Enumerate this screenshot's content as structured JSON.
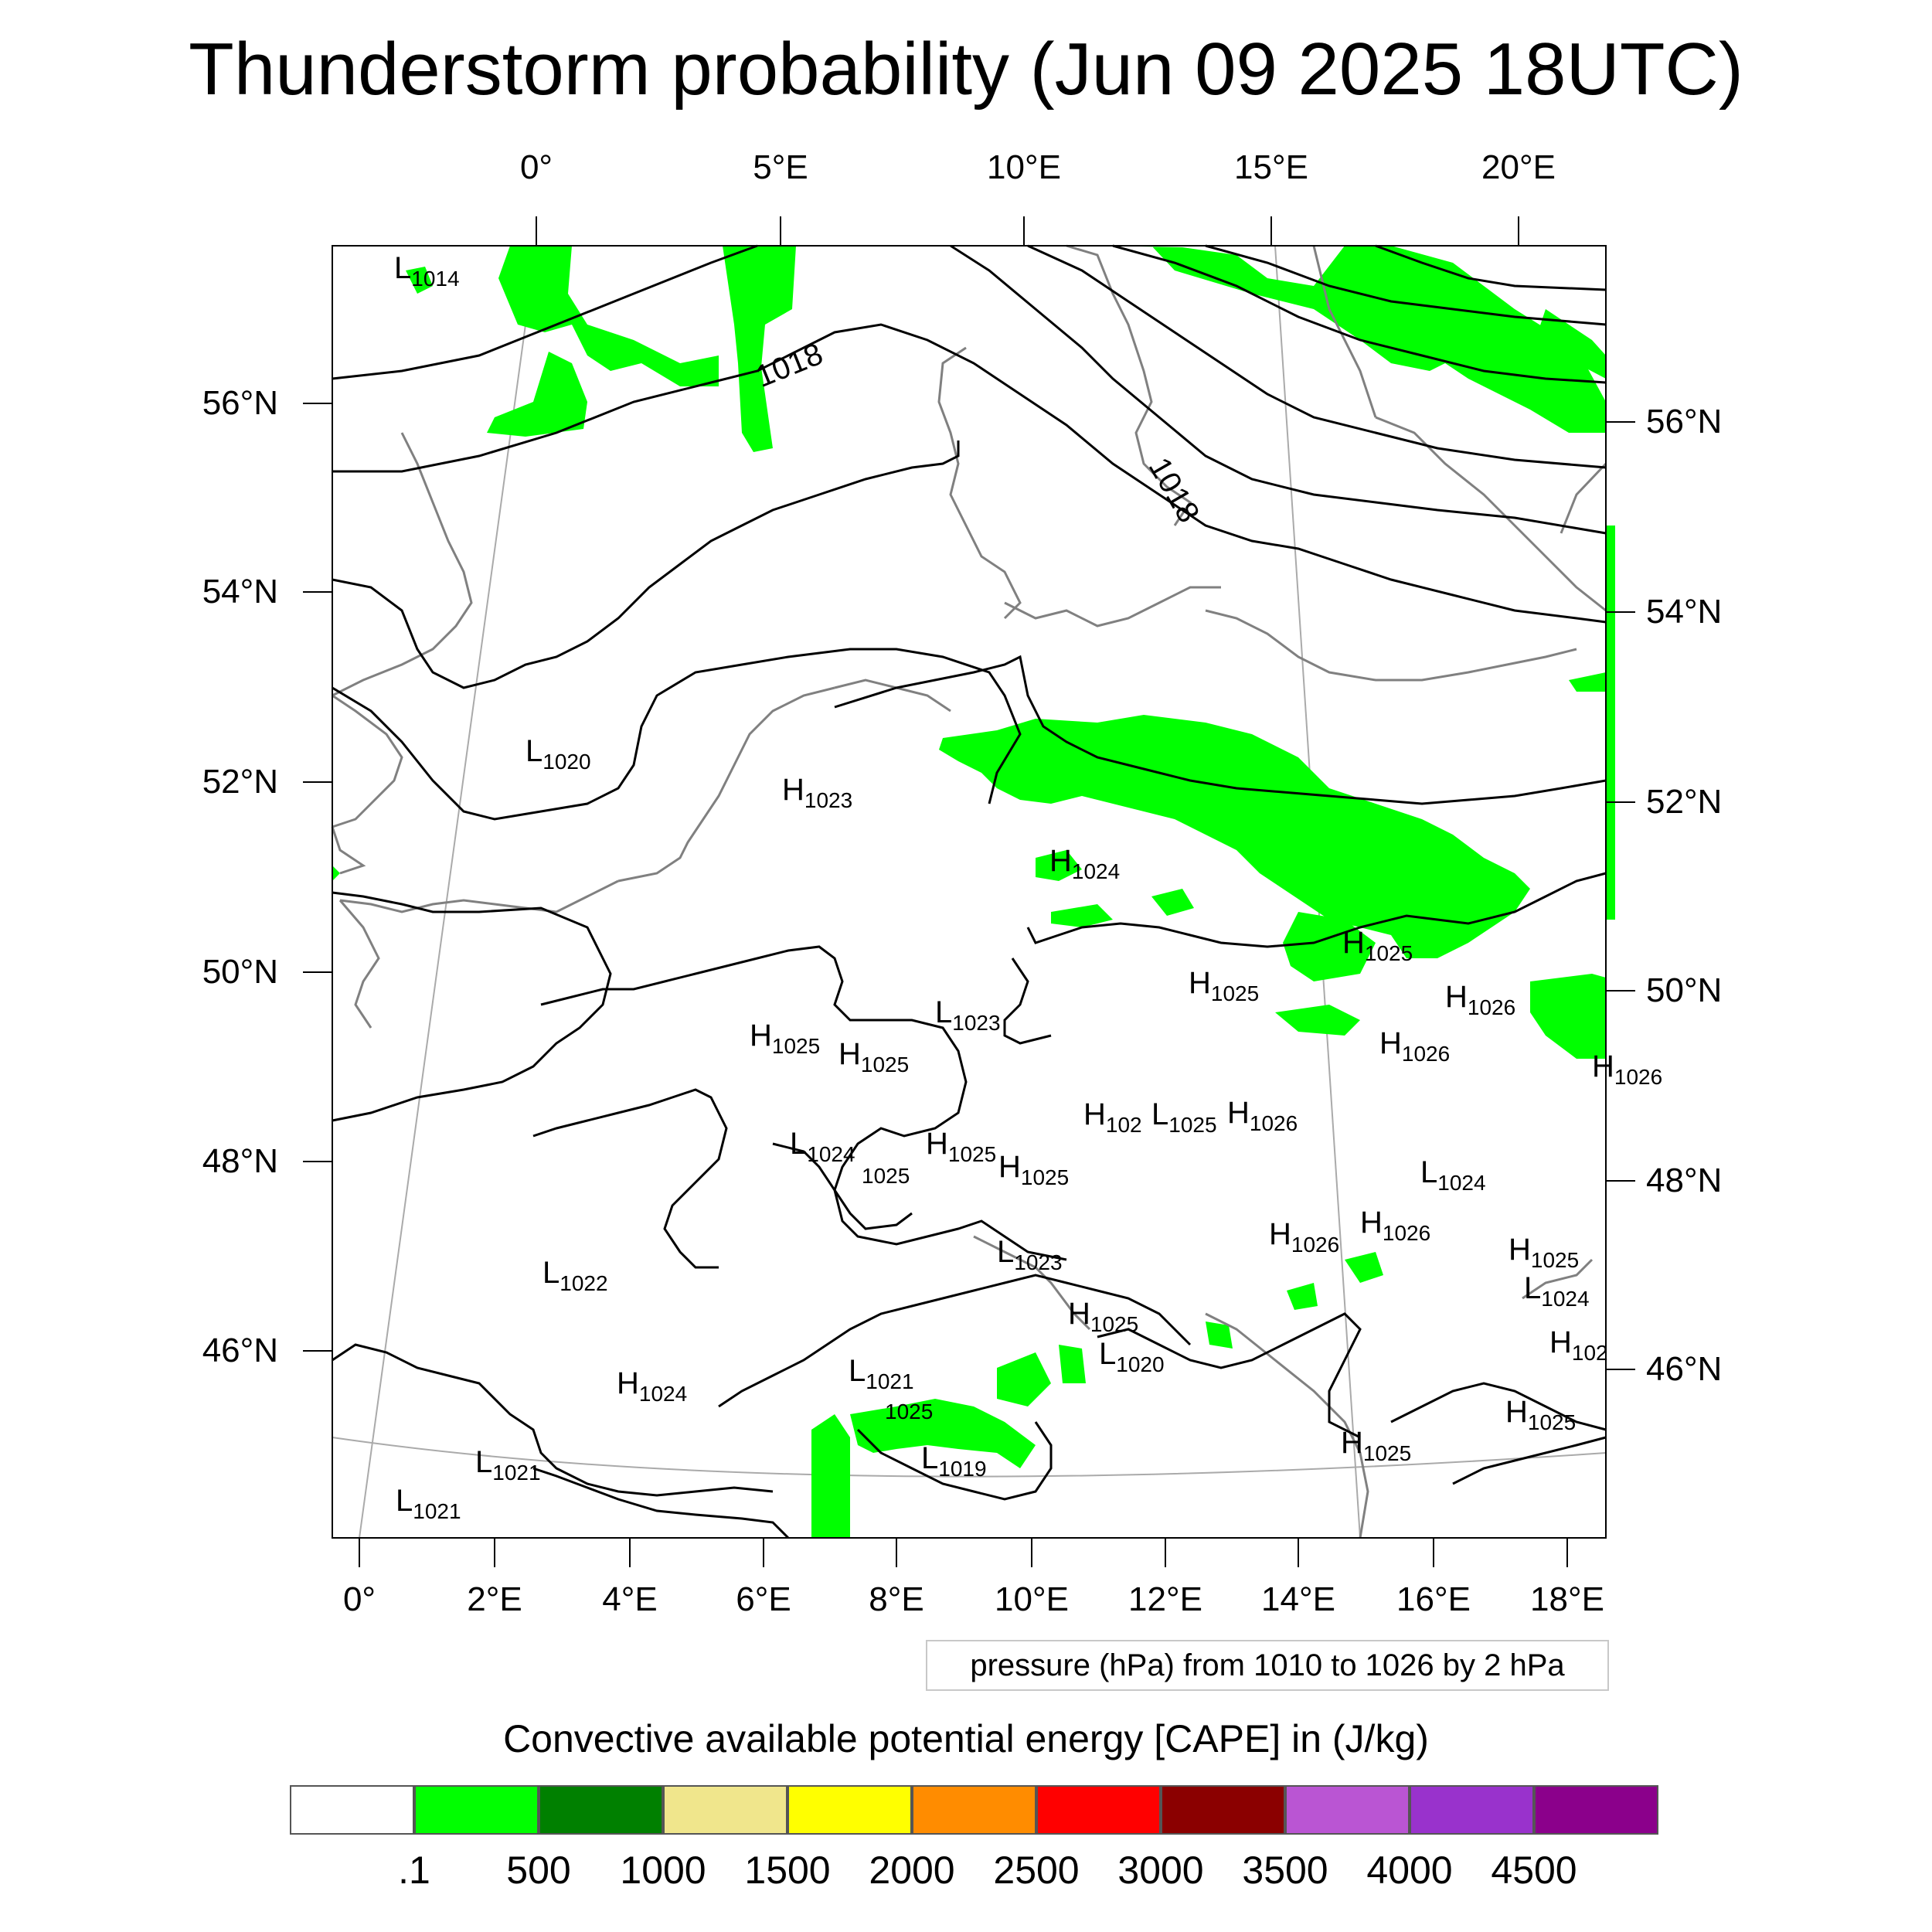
{
  "title": "Thunderstorm probability (Jun 09 2025 18UTC)",
  "map": {
    "top_lon_labels": [
      "0°",
      "5°E",
      "10°E",
      "15°E",
      "20°E"
    ],
    "bottom_lon_labels": [
      "0°",
      "2°E",
      "4°E",
      "6°E",
      "8°E",
      "10°E",
      "12°E",
      "14°E",
      "16°E",
      "18°E"
    ],
    "left_lat_labels": [
      "56°N",
      "54°N",
      "52°N",
      "50°N",
      "48°N",
      "46°N"
    ],
    "right_lat_labels": [
      "56°N",
      "54°N",
      "52°N",
      "50°N",
      "48°N",
      "46°N"
    ],
    "isobar_labels": [
      "1018",
      "1018"
    ],
    "pressure_centers": [
      {
        "type": "L",
        "value": "1014"
      },
      {
        "type": "L",
        "value": "1020"
      },
      {
        "type": "H",
        "value": "1023"
      },
      {
        "type": "H",
        "value": "1024"
      },
      {
        "type": "H",
        "value": "1025"
      },
      {
        "type": "H",
        "value": "1026"
      },
      {
        "type": "L",
        "value": "1023"
      },
      {
        "type": "H",
        "value": "1025"
      },
      {
        "type": "H",
        "value": "1025"
      },
      {
        "type": "H",
        "value": "1025"
      },
      {
        "type": "H",
        "value": "1026"
      },
      {
        "type": "H",
        "value": "1026"
      },
      {
        "type": "H",
        "value": "102"
      },
      {
        "type": "L",
        "value": "1025"
      },
      {
        "type": "H",
        "value": "1026"
      },
      {
        "type": "L",
        "value": "1024"
      },
      {
        "type": "H",
        "value": "1025"
      },
      {
        "type": "H",
        "value": "1025"
      },
      {
        "type": "L",
        "value": "1024"
      },
      {
        "type": "H",
        "value": "1026"
      },
      {
        "type": "H",
        "value": "1026"
      },
      {
        "type": "L",
        "value": "1022"
      },
      {
        "type": "L",
        "value": "1023"
      },
      {
        "type": "H",
        "value": "1025"
      },
      {
        "type": "L",
        "value": "1024"
      },
      {
        "type": "H",
        "value": "1025"
      },
      {
        "type": "L",
        "value": "1020"
      },
      {
        "type": "H",
        "value": "1024"
      },
      {
        "type": "L",
        "value": "1021"
      },
      {
        "type": "L",
        "value": "1019"
      },
      {
        "type": "L",
        "value": "1021"
      },
      {
        "type": "L",
        "value": "1021"
      },
      {
        "type": "H",
        "value": "1025"
      },
      {
        "type": "H",
        "value": "1025"
      },
      {
        "type": "H",
        "value": "102"
      }
    ],
    "center_extra_labels": [
      "1025",
      "1025"
    ],
    "colors": {
      "cape_fill": "#00ff00",
      "isobar": "#000000",
      "coastline": "#808080",
      "graticule": "#aaaaaa"
    }
  },
  "pressure_info": "pressure (hPa) from 1010 to 1026 by 2 hPa",
  "colorbar": {
    "title": "Convective available potential energy [CAPE] in (J/kg)",
    "colors": [
      "#ffffff",
      "#00ff00",
      "#008000",
      "#f0e68c",
      "#ffff00",
      "#ff8c00",
      "#ff0000",
      "#8b0000",
      "#ba55d3",
      "#9932cc",
      "#8b008b"
    ],
    "labels": [
      ".1",
      "500",
      "1000",
      "1500",
      "2000",
      "2500",
      "3000",
      "3500",
      "4000",
      "4500"
    ]
  }
}
